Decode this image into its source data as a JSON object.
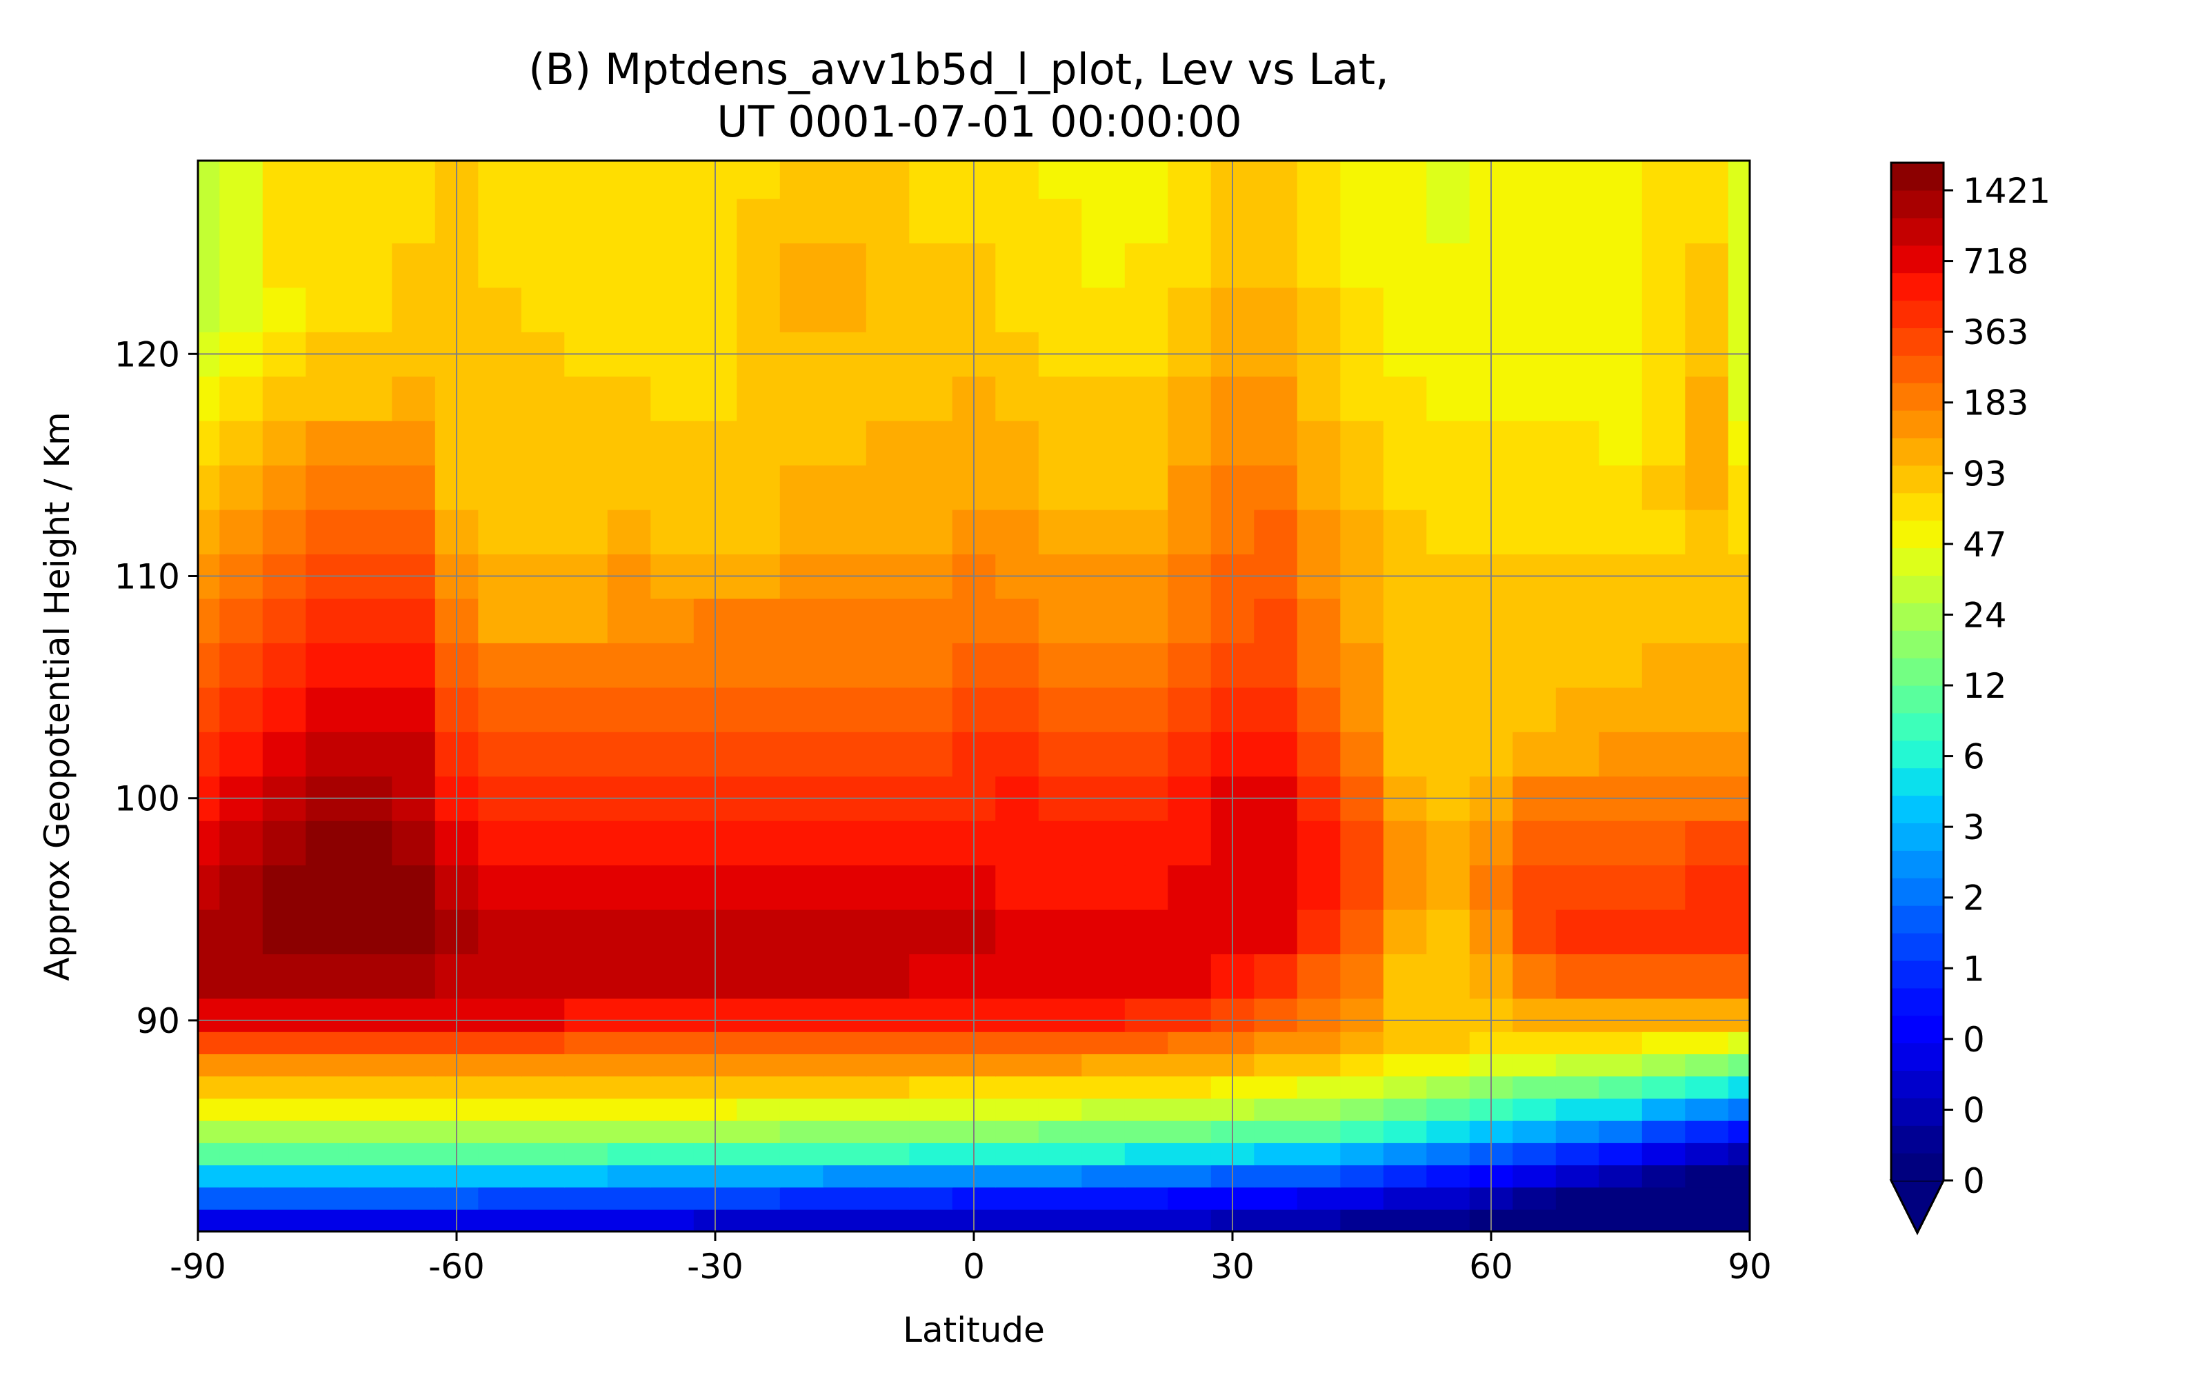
{
  "chart_data": {
    "type": "heatmap",
    "title_lines": [
      "(B) Mptdens_avv1b5d_l_plot, Lev vs Lat,",
      "UT 0001-07-01 00:00:00"
    ],
    "xlabel": "Latitude",
    "ylabel": "Approx Geopotential Height / Km",
    "xlim": [
      -90,
      90
    ],
    "ylim": [
      80.5,
      128.7
    ],
    "x_ticks": [
      -90,
      -60,
      -30,
      0,
      30,
      60,
      90
    ],
    "y_ticks": [
      90,
      100,
      110,
      120
    ],
    "grid": true,
    "colormap": "jet",
    "colorbar": {
      "position": "right",
      "extend": "min",
      "tick_labels": [
        "0",
        "0",
        "0",
        "1",
        "2",
        "3",
        "6",
        "12",
        "24",
        "47",
        "93",
        "183",
        "363",
        "718",
        "1421"
      ],
      "colors": [
        "#00007f",
        "#000093",
        "#0000b2",
        "#0000cc",
        "#0000e8",
        "#0000ff",
        "#0010ff",
        "#0028ff",
        "#0044ff",
        "#005cff",
        "#0078ff",
        "#0090ff",
        "#00acff",
        "#00c4ff",
        "#0be0ed",
        "#24f8d3",
        "#3dffba",
        "#59ff9d",
        "#73ff83",
        "#8dff6a",
        "#a7ff50",
        "#c3ff33",
        "#ddff1a",
        "#f6f602",
        "#ffde00",
        "#ffc400",
        "#ffac00",
        "#ff9200",
        "#ff7a00",
        "#ff6000",
        "#ff4800",
        "#ff2e00",
        "#ff1600",
        "#e30000",
        "#c40000",
        "#a80000",
        "#8c0000"
      ]
    },
    "latitudes": [
      -90,
      -85,
      -80,
      -75,
      -70,
      -65,
      -60,
      -55,
      -50,
      -45,
      -40,
      -35,
      -30,
      -25,
      -20,
      -15,
      -10,
      -5,
      0,
      5,
      10,
      15,
      20,
      25,
      30,
      35,
      40,
      45,
      50,
      55,
      60,
      65,
      70,
      75,
      80,
      85,
      90
    ],
    "heights_km": [
      81,
      82,
      83,
      84,
      85,
      86,
      87,
      88,
      89,
      90,
      92,
      94,
      96,
      98,
      100,
      102,
      104,
      106,
      108,
      110,
      112,
      114,
      116,
      118,
      120,
      122,
      124,
      126,
      128
    ],
    "field_description": "Mptdens, log-spaced color bands; values mapped to colorbar band index 0-36",
    "band_index_grid": [
      [
        4,
        4,
        4,
        4,
        4,
        4,
        4,
        4,
        4,
        4,
        4,
        4,
        3,
        3,
        3,
        3,
        3,
        3,
        3,
        3,
        3,
        3,
        3,
        3,
        2,
        2,
        2,
        1,
        1,
        1,
        0,
        0,
        0,
        0,
        0,
        0,
        0
      ],
      [
        9,
        9,
        9,
        9,
        9,
        9,
        9,
        8,
        8,
        8,
        8,
        8,
        8,
        8,
        7,
        7,
        7,
        7,
        6,
        6,
        6,
        6,
        6,
        5,
        5,
        5,
        4,
        4,
        3,
        3,
        2,
        1,
        0,
        0,
        0,
        0,
        0
      ],
      [
        13,
        13,
        13,
        13,
        13,
        13,
        13,
        13,
        13,
        13,
        12,
        12,
        12,
        12,
        12,
        11,
        11,
        11,
        11,
        11,
        11,
        10,
        10,
        10,
        9,
        9,
        9,
        8,
        7,
        6,
        5,
        4,
        3,
        2,
        1,
        0,
        0
      ],
      [
        17,
        17,
        17,
        17,
        17,
        17,
        17,
        17,
        17,
        17,
        16,
        16,
        16,
        16,
        16,
        16,
        16,
        15,
        15,
        15,
        15,
        15,
        14,
        14,
        14,
        13,
        13,
        12,
        11,
        10,
        9,
        8,
        7,
        6,
        4,
        3,
        2
      ],
      [
        20,
        20,
        20,
        20,
        20,
        20,
        20,
        20,
        20,
        20,
        20,
        20,
        20,
        20,
        19,
        19,
        19,
        19,
        19,
        19,
        18,
        18,
        18,
        18,
        17,
        17,
        17,
        16,
        15,
        14,
        13,
        12,
        11,
        10,
        8,
        7,
        6
      ],
      [
        23,
        23,
        23,
        23,
        23,
        23,
        23,
        23,
        23,
        23,
        23,
        23,
        23,
        22,
        22,
        22,
        22,
        22,
        22,
        22,
        22,
        21,
        21,
        21,
        21,
        20,
        20,
        19,
        18,
        17,
        16,
        15,
        14,
        14,
        12,
        11,
        10
      ],
      [
        25,
        25,
        25,
        25,
        25,
        25,
        25,
        25,
        25,
        25,
        25,
        25,
        25,
        25,
        25,
        25,
        25,
        24,
        24,
        24,
        24,
        24,
        24,
        24,
        23,
        23,
        22,
        22,
        21,
        20,
        19,
        18,
        18,
        17,
        16,
        15,
        14
      ],
      [
        27,
        27,
        27,
        27,
        27,
        27,
        27,
        27,
        27,
        27,
        27,
        27,
        27,
        27,
        27,
        27,
        27,
        27,
        27,
        27,
        27,
        26,
        26,
        26,
        26,
        25,
        25,
        24,
        23,
        23,
        22,
        22,
        21,
        21,
        20,
        19,
        18
      ],
      [
        30,
        30,
        30,
        30,
        30,
        30,
        30,
        30,
        30,
        29,
        29,
        29,
        29,
        29,
        29,
        29,
        29,
        29,
        29,
        29,
        29,
        29,
        29,
        28,
        28,
        27,
        27,
        26,
        25,
        25,
        24,
        24,
        24,
        24,
        23,
        23,
        22
      ],
      [
        33,
        33,
        33,
        33,
        33,
        33,
        33,
        33,
        33,
        32,
        32,
        32,
        32,
        32,
        32,
        32,
        32,
        32,
        32,
        32,
        32,
        32,
        31,
        31,
        30,
        29,
        28,
        27,
        25,
        25,
        25,
        26,
        26,
        26,
        26,
        26,
        26
      ],
      [
        35,
        35,
        35,
        35,
        35,
        35,
        34,
        34,
        34,
        34,
        34,
        34,
        34,
        34,
        34,
        34,
        34,
        33,
        33,
        33,
        33,
        33,
        33,
        33,
        32,
        31,
        29,
        28,
        25,
        25,
        26,
        28,
        29,
        29,
        29,
        29,
        29
      ],
      [
        35,
        35,
        36,
        36,
        36,
        36,
        35,
        34,
        34,
        34,
        34,
        34,
        34,
        34,
        34,
        34,
        34,
        34,
        34,
        33,
        33,
        33,
        33,
        33,
        33,
        33,
        31,
        29,
        26,
        25,
        27,
        30,
        31,
        31,
        31,
        31,
        31
      ],
      [
        34,
        35,
        36,
        36,
        36,
        36,
        34,
        33,
        33,
        33,
        33,
        33,
        33,
        33,
        33,
        33,
        33,
        33,
        33,
        32,
        32,
        32,
        32,
        33,
        33,
        33,
        32,
        30,
        27,
        26,
        28,
        30,
        30,
        30,
        30,
        31,
        31
      ],
      [
        33,
        34,
        35,
        36,
        36,
        35,
        33,
        32,
        32,
        32,
        32,
        32,
        32,
        32,
        32,
        32,
        32,
        32,
        32,
        32,
        32,
        32,
        32,
        32,
        33,
        33,
        32,
        30,
        27,
        26,
        27,
        29,
        29,
        29,
        29,
        30,
        30
      ],
      [
        32,
        33,
        34,
        35,
        35,
        34,
        32,
        31,
        31,
        31,
        31,
        31,
        31,
        31,
        31,
        31,
        31,
        31,
        31,
        32,
        31,
        31,
        31,
        32,
        33,
        33,
        31,
        29,
        26,
        25,
        26,
        28,
        28,
        28,
        28,
        28,
        28
      ],
      [
        31,
        32,
        33,
        34,
        34,
        34,
        31,
        30,
        30,
        30,
        30,
        30,
        30,
        30,
        30,
        30,
        30,
        30,
        31,
        31,
        30,
        30,
        30,
        31,
        32,
        32,
        30,
        28,
        25,
        25,
        25,
        26,
        26,
        27,
        27,
        27,
        27
      ],
      [
        30,
        31,
        32,
        33,
        33,
        33,
        30,
        29,
        29,
        29,
        29,
        29,
        29,
        29,
        29,
        29,
        29,
        29,
        30,
        30,
        29,
        29,
        29,
        30,
        31,
        31,
        29,
        27,
        25,
        25,
        25,
        25,
        26,
        26,
        26,
        26,
        26
      ],
      [
        29,
        30,
        31,
        32,
        32,
        32,
        29,
        28,
        28,
        28,
        28,
        28,
        28,
        28,
        28,
        28,
        28,
        28,
        29,
        29,
        28,
        28,
        28,
        29,
        30,
        30,
        28,
        27,
        25,
        25,
        25,
        25,
        25,
        25,
        26,
        26,
        26
      ],
      [
        28,
        29,
        30,
        31,
        31,
        31,
        28,
        26,
        26,
        26,
        27,
        27,
        28,
        28,
        28,
        28,
        28,
        28,
        28,
        28,
        27,
        27,
        27,
        28,
        29,
        30,
        28,
        26,
        25,
        25,
        25,
        25,
        25,
        25,
        25,
        25,
        25
      ],
      [
        27,
        28,
        29,
        30,
        30,
        30,
        27,
        26,
        26,
        26,
        27,
        26,
        26,
        26,
        27,
        27,
        27,
        27,
        28,
        27,
        27,
        27,
        27,
        28,
        29,
        29,
        27,
        26,
        25,
        25,
        25,
        25,
        25,
        25,
        25,
        25,
        25
      ],
      [
        26,
        27,
        28,
        29,
        29,
        29,
        26,
        25,
        25,
        25,
        26,
        25,
        25,
        25,
        26,
        26,
        26,
        26,
        27,
        27,
        26,
        26,
        26,
        27,
        28,
        29,
        27,
        26,
        25,
        24,
        24,
        24,
        24,
        24,
        24,
        25,
        24
      ],
      [
        25,
        26,
        27,
        28,
        28,
        28,
        25,
        25,
        25,
        25,
        25,
        25,
        25,
        25,
        26,
        26,
        26,
        26,
        26,
        26,
        25,
        25,
        25,
        27,
        28,
        28,
        26,
        25,
        24,
        24,
        24,
        24,
        24,
        24,
        25,
        26,
        24
      ],
      [
        24,
        25,
        26,
        27,
        27,
        27,
        25,
        25,
        25,
        25,
        25,
        25,
        25,
        25,
        25,
        25,
        26,
        26,
        26,
        26,
        25,
        25,
        25,
        26,
        27,
        27,
        26,
        25,
        24,
        24,
        24,
        24,
        24,
        23,
        24,
        26,
        23
      ],
      [
        23,
        24,
        25,
        25,
        25,
        26,
        25,
        25,
        25,
        25,
        25,
        24,
        24,
        25,
        25,
        25,
        25,
        25,
        26,
        25,
        25,
        25,
        25,
        26,
        27,
        27,
        25,
        24,
        24,
        23,
        23,
        23,
        23,
        23,
        24,
        26,
        22
      ],
      [
        22,
        23,
        24,
        25,
        25,
        25,
        25,
        25,
        25,
        24,
        24,
        24,
        24,
        25,
        25,
        25,
        25,
        25,
        25,
        25,
        24,
        24,
        24,
        25,
        26,
        26,
        25,
        24,
        23,
        23,
        23,
        23,
        23,
        23,
        24,
        25,
        22
      ],
      [
        21,
        22,
        23,
        24,
        24,
        25,
        25,
        25,
        24,
        24,
        24,
        24,
        24,
        25,
        26,
        26,
        25,
        25,
        25,
        24,
        24,
        24,
        24,
        25,
        26,
        26,
        25,
        24,
        23,
        23,
        23,
        23,
        23,
        23,
        24,
        25,
        22
      ],
      [
        21,
        22,
        24,
        24,
        24,
        25,
        25,
        24,
        24,
        24,
        24,
        24,
        24,
        25,
        26,
        26,
        25,
        25,
        25,
        24,
        24,
        23,
        24,
        24,
        25,
        25,
        24,
        23,
        23,
        23,
        23,
        23,
        23,
        23,
        24,
        25,
        22
      ],
      [
        21,
        22,
        24,
        24,
        24,
        24,
        25,
        24,
        24,
        24,
        24,
        24,
        24,
        25,
        25,
        25,
        25,
        24,
        24,
        24,
        24,
        23,
        23,
        24,
        25,
        25,
        24,
        23,
        23,
        22,
        23,
        23,
        23,
        23,
        24,
        24,
        22
      ],
      [
        21,
        22,
        24,
        24,
        24,
        24,
        25,
        24,
        24,
        24,
        24,
        24,
        24,
        24,
        25,
        25,
        25,
        24,
        24,
        24,
        23,
        23,
        23,
        24,
        25,
        25,
        24,
        23,
        23,
        22,
        23,
        23,
        23,
        23,
        24,
        24,
        22
      ]
    ]
  }
}
